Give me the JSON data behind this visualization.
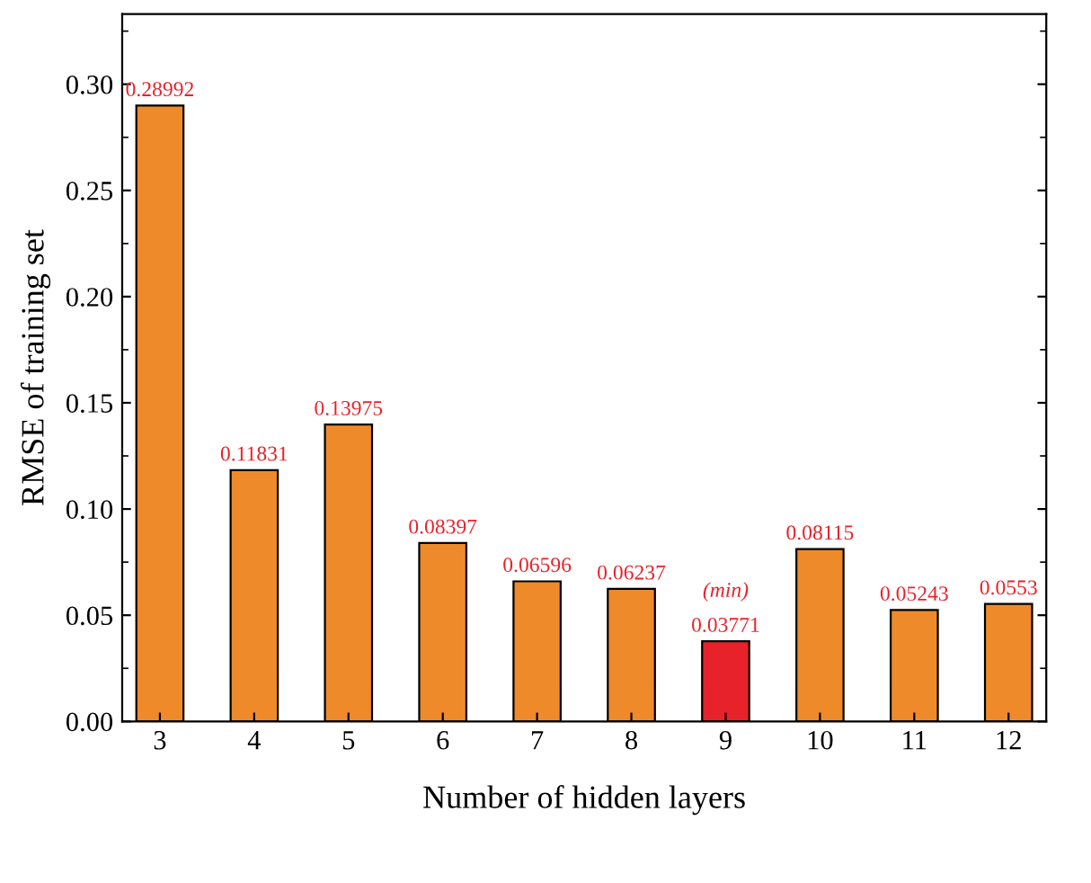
{
  "chart_data": {
    "type": "bar",
    "xlabel": "Number of hidden layers",
    "ylabel": "RMSE of training set",
    "categories": [
      "3",
      "4",
      "5",
      "6",
      "7",
      "8",
      "9",
      "10",
      "11",
      "12"
    ],
    "values": [
      0.28992,
      0.11831,
      0.13975,
      0.08397,
      0.06596,
      0.06237,
      0.03771,
      0.08115,
      0.05243,
      0.0553
    ],
    "colors": [
      "#ef8a2b",
      "#ef8a2b",
      "#ef8a2b",
      "#ef8a2b",
      "#ef8a2b",
      "#ef8a2b",
      "#e8222a",
      "#ef8a2b",
      "#ef8a2b",
      "#ef8a2b"
    ],
    "data_labels": true,
    "annotations": [
      {
        "text": "(min)",
        "x": "9",
        "y": 0.03771
      }
    ],
    "ylim": [
      0,
      0.333
    ],
    "yticks": [
      {
        "value": 0,
        "label": "0.00"
      },
      {
        "value": 0.05,
        "label": "0.05"
      },
      {
        "value": 0.1,
        "label": "0.10"
      },
      {
        "value": 0.15,
        "label": "0.15"
      },
      {
        "value": 0.2,
        "label": "0.20"
      },
      {
        "value": 0.25,
        "label": "0.25"
      },
      {
        "value": 0.3,
        "label": "0.30"
      }
    ],
    "grid": false,
    "legend": false
  }
}
